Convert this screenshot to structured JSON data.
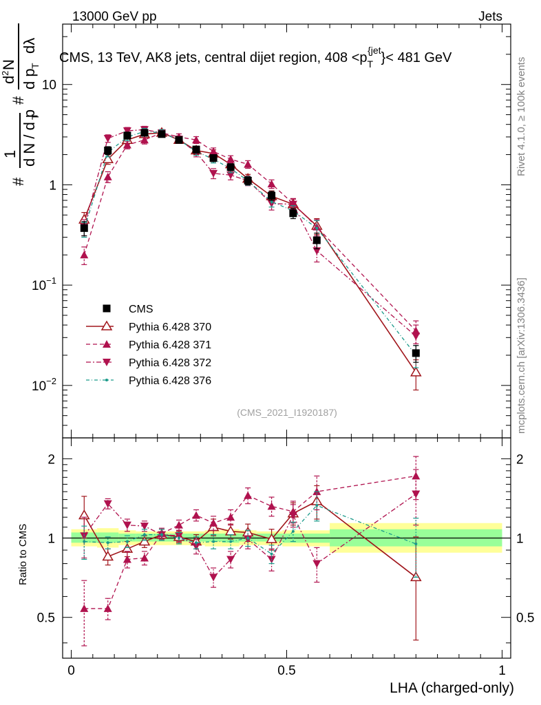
{
  "header": {
    "left": "13000 GeV pp",
    "right": "Jets",
    "plot_title": "CMS, 13 TeV, AK8 jets, central dijet region, 408 <p",
    "plot_title_sub": "T",
    "plot_title_sup": "{jet",
    "plot_title_end": "}< 481 GeV"
  },
  "side_labels": {
    "rivet": "Rivet 4.1.0, ≥ 100k events",
    "mcplots": "mcplots.cern.ch [arXiv:1306.3436]"
  },
  "watermark": "(CMS_2021_I1920187)",
  "y_label": {
    "main_1": "#",
    "main_2": "1",
    "main_3": "d N / d p",
    "main_4": "T",
    "main_5": "#",
    "main_6": "d",
    "main_6_sup": "2",
    "main_7": "N",
    "main_8": "d p",
    "main_9": "T",
    "main_10": "dλ",
    "ratio": "Ratio to CMS"
  },
  "x_label": "LHA (charged-only)",
  "colors": {
    "data": "#000000",
    "p370": "#a0151b",
    "p371": "#b0124e",
    "p372": "#b0124e",
    "p376": "#1a9a8a",
    "band_inner": "#99ff99",
    "band_outer": "#ffff99"
  },
  "chart_data": [
    {
      "type": "scatter",
      "name": "main",
      "xlim": [
        -0.02,
        1.02
      ],
      "ylim_log": [
        0.003,
        40
      ],
      "yscale": "log",
      "x_ticks": [
        0,
        0.5,
        1
      ],
      "y_tick_labels": [
        "10^-2",
        "10^-1",
        "1",
        "10"
      ],
      "y_tick_values": [
        0.01,
        0.1,
        1,
        10
      ],
      "legend": [
        "CMS",
        "Pythia 6.428 370",
        "Pythia 6.428 371",
        "Pythia 6.428 372",
        "Pythia 6.428 376"
      ],
      "legend_position": "lower-left",
      "series": [
        {
          "name": "CMS",
          "key": "data",
          "x": [
            0.03,
            0.085,
            0.13,
            0.17,
            0.21,
            0.25,
            0.29,
            0.33,
            0.37,
            0.41,
            0.465,
            0.515,
            0.57,
            0.8
          ],
          "y": [
            0.37,
            2.2,
            3.1,
            3.3,
            3.2,
            2.8,
            2.25,
            1.85,
            1.5,
            1.1,
            0.78,
            0.52,
            0.28,
            0.021
          ],
          "err": [
            0.06,
            0.2,
            0.25,
            0.25,
            0.2,
            0.2,
            0.18,
            0.15,
            0.12,
            0.1,
            0.08,
            0.06,
            0.05,
            0.004
          ]
        },
        {
          "name": "Pythia 6.428 370",
          "key": "p370",
          "x": [
            0.03,
            0.085,
            0.13,
            0.17,
            0.21,
            0.25,
            0.29,
            0.33,
            0.37,
            0.41,
            0.465,
            0.515,
            0.57,
            0.8
          ],
          "y": [
            0.45,
            1.8,
            2.8,
            3.2,
            3.3,
            2.8,
            2.2,
            2.05,
            1.6,
            1.15,
            0.77,
            0.64,
            0.39,
            0.0135
          ],
          "err": [
            0.08,
            0.2,
            0.25,
            0.25,
            0.25,
            0.2,
            0.2,
            0.18,
            0.15,
            0.12,
            0.1,
            0.08,
            0.07,
            0.0045
          ]
        },
        {
          "name": "Pythia 6.428 371",
          "key": "p371",
          "x": [
            0.03,
            0.085,
            0.13,
            0.17,
            0.21,
            0.25,
            0.29,
            0.33,
            0.37,
            0.41,
            0.465,
            0.515,
            0.57,
            0.8
          ],
          "y": [
            0.2,
            1.2,
            2.5,
            2.8,
            3.3,
            3.0,
            2.8,
            2.15,
            1.8,
            1.6,
            1.02,
            0.65,
            0.38,
            0.035
          ],
          "err": [
            0.04,
            0.15,
            0.22,
            0.25,
            0.25,
            0.22,
            0.22,
            0.18,
            0.15,
            0.14,
            0.1,
            0.08,
            0.07,
            0.009
          ]
        },
        {
          "name": "Pythia 6.428 372",
          "key": "p372",
          "x": [
            0.03,
            0.085,
            0.13,
            0.17,
            0.21,
            0.25,
            0.29,
            0.33,
            0.37,
            0.41,
            0.465,
            0.515,
            0.57,
            0.8
          ],
          "y": [
            0.38,
            2.9,
            3.45,
            3.55,
            3.3,
            2.85,
            2.1,
            1.3,
            1.25,
            1.1,
            0.65,
            0.64,
            0.22,
            0.031
          ],
          "err": [
            0.07,
            0.25,
            0.28,
            0.28,
            0.25,
            0.22,
            0.2,
            0.15,
            0.13,
            0.12,
            0.09,
            0.08,
            0.05,
            0.009
          ]
        },
        {
          "name": "Pythia 6.428 376",
          "key": "p376",
          "x": [
            0.03,
            0.085,
            0.13,
            0.17,
            0.21,
            0.25,
            0.29,
            0.33,
            0.37,
            0.41,
            0.465,
            0.515,
            0.57,
            0.8
          ],
          "y": [
            0.36,
            2.1,
            3.0,
            3.4,
            3.3,
            2.8,
            2.15,
            1.8,
            1.45,
            1.1,
            0.68,
            0.55,
            0.37,
            0.02
          ],
          "err": [
            0.06,
            0.2,
            0.25,
            0.25,
            0.25,
            0.2,
            0.18,
            0.15,
            0.13,
            0.11,
            0.08,
            0.07,
            0.07,
            0.005
          ]
        }
      ]
    },
    {
      "type": "scatter",
      "name": "ratio",
      "xlim": [
        -0.02,
        1.02
      ],
      "ylim_log": [
        0.35,
        2.4
      ],
      "yscale": "log",
      "x_ticks": [
        0,
        0.5,
        1
      ],
      "x_tick_labels": [
        "0",
        "0.5",
        "1"
      ],
      "y_tick_labels": [
        "0.5",
        "1",
        "2"
      ],
      "y_tick_values": [
        0.5,
        1,
        2
      ],
      "bands": [
        {
          "x0": 0.0,
          "x1": 0.06,
          "inner": [
            0.96,
            1.05
          ],
          "outer": [
            0.93,
            1.08
          ]
        },
        {
          "x0": 0.06,
          "x1": 0.11,
          "inner": [
            0.96,
            1.05
          ],
          "outer": [
            0.92,
            1.09
          ]
        },
        {
          "x0": 0.11,
          "x1": 0.15,
          "inner": [
            0.97,
            1.04
          ],
          "outer": [
            0.94,
            1.07
          ]
        },
        {
          "x0": 0.15,
          "x1": 0.19,
          "inner": [
            0.97,
            1.04
          ],
          "outer": [
            0.94,
            1.06
          ]
        },
        {
          "x0": 0.19,
          "x1": 0.23,
          "inner": [
            0.97,
            1.04
          ],
          "outer": [
            0.94,
            1.06
          ]
        },
        {
          "x0": 0.23,
          "x1": 0.27,
          "inner": [
            0.97,
            1.04
          ],
          "outer": [
            0.94,
            1.06
          ]
        },
        {
          "x0": 0.27,
          "x1": 0.31,
          "inner": [
            0.97,
            1.04
          ],
          "outer": [
            0.94,
            1.06
          ]
        },
        {
          "x0": 0.31,
          "x1": 0.35,
          "inner": [
            0.97,
            1.04
          ],
          "outer": [
            0.93,
            1.07
          ]
        },
        {
          "x0": 0.35,
          "x1": 0.39,
          "inner": [
            0.96,
            1.04
          ],
          "outer": [
            0.93,
            1.08
          ]
        },
        {
          "x0": 0.39,
          "x1": 0.43,
          "inner": [
            0.97,
            1.04
          ],
          "outer": [
            0.94,
            1.07
          ]
        },
        {
          "x0": 0.43,
          "x1": 0.49,
          "inner": [
            0.97,
            1.04
          ],
          "outer": [
            0.94,
            1.06
          ]
        },
        {
          "x0": 0.49,
          "x1": 0.54,
          "inner": [
            0.96,
            1.04
          ],
          "outer": [
            0.93,
            1.07
          ]
        },
        {
          "x0": 0.54,
          "x1": 0.6,
          "inner": [
            0.96,
            1.04
          ],
          "outer": [
            0.93,
            1.07
          ]
        },
        {
          "x0": 0.6,
          "x1": 1.0,
          "inner": [
            0.93,
            1.08
          ],
          "outer": [
            0.88,
            1.14
          ]
        }
      ],
      "series": [
        {
          "name": "Pythia 6.428 370",
          "key": "p370",
          "x": [
            0.03,
            0.085,
            0.13,
            0.17,
            0.21,
            0.25,
            0.29,
            0.33,
            0.37,
            0.41,
            0.465,
            0.515,
            0.57,
            0.8
          ],
          "y": [
            1.22,
            0.85,
            0.91,
            0.97,
            1.03,
            1.01,
            0.97,
            1.1,
            1.06,
            1.05,
            0.99,
            1.24,
            1.38,
            0.71
          ],
          "err": [
            0.22,
            0.06,
            0.06,
            0.05,
            0.05,
            0.05,
            0.06,
            0.08,
            0.07,
            0.08,
            0.09,
            0.12,
            0.2,
            0.3
          ]
        },
        {
          "name": "Pythia 6.428 371",
          "key": "p371",
          "x": [
            0.03,
            0.085,
            0.13,
            0.17,
            0.21,
            0.25,
            0.29,
            0.33,
            0.37,
            0.41,
            0.465,
            0.515,
            0.57,
            0.8
          ],
          "y": [
            0.54,
            0.54,
            0.83,
            0.84,
            1.04,
            1.12,
            1.22,
            1.14,
            1.2,
            1.45,
            1.32,
            1.26,
            1.5,
            1.72
          ],
          "err": [
            0.15,
            0.05,
            0.06,
            0.05,
            0.05,
            0.05,
            0.06,
            0.07,
            0.08,
            0.1,
            0.11,
            0.12,
            0.22,
            0.32
          ]
        },
        {
          "name": "Pythia 6.428 372",
          "key": "p372",
          "x": [
            0.03,
            0.085,
            0.13,
            0.17,
            0.21,
            0.25,
            0.29,
            0.33,
            0.37,
            0.41,
            0.465,
            0.515,
            0.57,
            0.8
          ],
          "y": [
            1.02,
            1.35,
            1.12,
            1.11,
            1.03,
            1.02,
            0.93,
            0.71,
            0.83,
            0.99,
            0.83,
            1.22,
            0.8,
            1.47
          ],
          "err": [
            0.18,
            0.06,
            0.06,
            0.05,
            0.05,
            0.05,
            0.06,
            0.06,
            0.06,
            0.08,
            0.08,
            0.12,
            0.12,
            0.35
          ]
        },
        {
          "name": "Pythia 6.428 376",
          "key": "p376",
          "x": [
            0.03,
            0.085,
            0.13,
            0.17,
            0.21,
            0.25,
            0.29,
            0.33,
            0.37,
            0.41,
            0.465,
            0.515,
            0.57,
            0.8
          ],
          "y": [
            0.97,
            0.96,
            0.97,
            1.03,
            1.03,
            1.0,
            0.96,
            0.97,
            0.97,
            1.0,
            0.87,
            1.06,
            1.33,
            0.95
          ],
          "err": [
            0.14,
            0.05,
            0.05,
            0.05,
            0.05,
            0.05,
            0.05,
            0.06,
            0.06,
            0.07,
            0.07,
            0.09,
            0.17,
            0.24
          ]
        }
      ]
    }
  ]
}
